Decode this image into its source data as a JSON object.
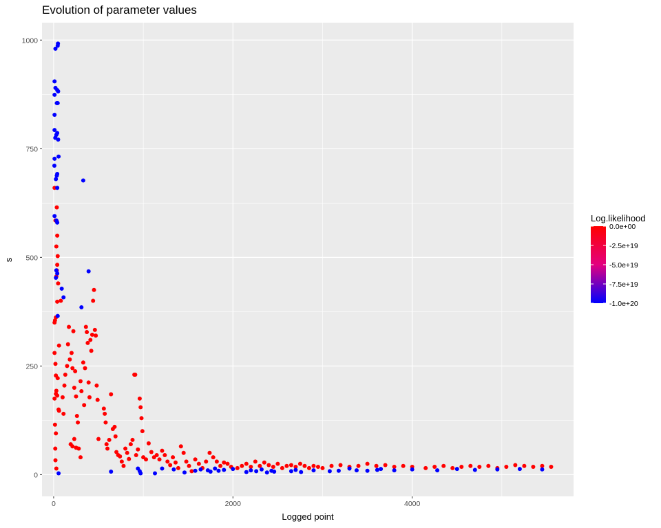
{
  "chart_data": {
    "type": "scatter",
    "title": "Evolution of parameter values",
    "xlabel": "Logged point",
    "ylabel": "s",
    "xlim": [
      -130,
      5800
    ],
    "ylim": [
      -50,
      1040
    ],
    "x_ticks": [
      0,
      2000,
      4000
    ],
    "x_tick_labels": [
      "0",
      "2000",
      "4000"
    ],
    "y_ticks": [
      0,
      250,
      500,
      750,
      1000
    ],
    "y_tick_labels": [
      "0",
      "250",
      "500",
      "750",
      "1000"
    ],
    "grid": true,
    "background": "#ebebeb",
    "legend": {
      "title": "Log.likelihood",
      "position": "right",
      "type": "gradient",
      "low_color": "#0000ff",
      "high_color": "#ff0000",
      "range": [
        -1e+20,
        0
      ],
      "breaks": [
        0,
        -2.5e+19,
        -5e+19,
        -7.5e+19,
        -1e+20
      ],
      "labels": [
        "0.0e+00",
        "-2.5e+19",
        "-5.0e+19",
        "-7.5e+19",
        "-1.0e+20"
      ]
    },
    "blue_points": [
      [
        48,
        992
      ],
      [
        45,
        987
      ],
      [
        20,
        980
      ],
      [
        10,
        905
      ],
      [
        20,
        890
      ],
      [
        40,
        885
      ],
      [
        50,
        882
      ],
      [
        10,
        874
      ],
      [
        35,
        855
      ],
      [
        45,
        855
      ],
      [
        10,
        828
      ],
      [
        10,
        793
      ],
      [
        40,
        786
      ],
      [
        30,
        782
      ],
      [
        18,
        775
      ],
      [
        50,
        771
      ],
      [
        55,
        732
      ],
      [
        10,
        727
      ],
      [
        8,
        711
      ],
      [
        40,
        692
      ],
      [
        35,
        688
      ],
      [
        25,
        680
      ],
      [
        40,
        660
      ],
      [
        330,
        677
      ],
      [
        10,
        595
      ],
      [
        30,
        585
      ],
      [
        40,
        580
      ],
      [
        390,
        468
      ],
      [
        30,
        470
      ],
      [
        40,
        463
      ],
      [
        25,
        453
      ],
      [
        90,
        428
      ],
      [
        110,
        408
      ],
      [
        310,
        385
      ],
      [
        45,
        365
      ],
      [
        55,
        3
      ],
      [
        640,
        7
      ],
      [
        940,
        14
      ],
      [
        960,
        8
      ],
      [
        970,
        3
      ],
      [
        1130,
        3
      ],
      [
        1210,
        14
      ],
      [
        1340,
        12
      ],
      [
        1460,
        5
      ],
      [
        1580,
        9
      ],
      [
        1640,
        12
      ],
      [
        1720,
        10
      ],
      [
        1750,
        7
      ],
      [
        1800,
        14
      ],
      [
        1840,
        9
      ],
      [
        1900,
        11
      ],
      [
        2000,
        13
      ],
      [
        2150,
        6
      ],
      [
        2200,
        10
      ],
      [
        2260,
        8
      ],
      [
        2320,
        12
      ],
      [
        2380,
        5
      ],
      [
        2430,
        9
      ],
      [
        2460,
        7
      ],
      [
        2650,
        8
      ],
      [
        2700,
        11
      ],
      [
        2760,
        6
      ],
      [
        2900,
        10
      ],
      [
        3080,
        8
      ],
      [
        3180,
        9
      ],
      [
        3300,
        14
      ],
      [
        3380,
        10
      ],
      [
        3500,
        9
      ],
      [
        3610,
        11
      ],
      [
        3650,
        13
      ],
      [
        3800,
        10
      ],
      [
        4000,
        12
      ],
      [
        4280,
        10
      ],
      [
        4500,
        13
      ],
      [
        4700,
        11
      ],
      [
        4950,
        12
      ],
      [
        5200,
        13
      ],
      [
        5450,
        12
      ]
    ],
    "red_points": [
      [
        10,
        660
      ],
      [
        35,
        615
      ],
      [
        20,
        585
      ],
      [
        35,
        583
      ],
      [
        40,
        550
      ],
      [
        30,
        525
      ],
      [
        45,
        503
      ],
      [
        40,
        483
      ],
      [
        35,
        470
      ],
      [
        30,
        456
      ],
      [
        50,
        440
      ],
      [
        80,
        400
      ],
      [
        40,
        398
      ],
      [
        10,
        350
      ],
      [
        15,
        355
      ],
      [
        25,
        362
      ],
      [
        60,
        297
      ],
      [
        10,
        280
      ],
      [
        20,
        255
      ],
      [
        25,
        228
      ],
      [
        10,
        175
      ],
      [
        30,
        193
      ],
      [
        40,
        182
      ],
      [
        45,
        222
      ],
      [
        25,
        186
      ],
      [
        55,
        150
      ],
      [
        60,
        147
      ],
      [
        15,
        115
      ],
      [
        25,
        95
      ],
      [
        18,
        60
      ],
      [
        20,
        33
      ],
      [
        30,
        14
      ],
      [
        100,
        178
      ],
      [
        110,
        140
      ],
      [
        120,
        205
      ],
      [
        130,
        230
      ],
      [
        150,
        250
      ],
      [
        160,
        300
      ],
      [
        170,
        340
      ],
      [
        180,
        265
      ],
      [
        200,
        280
      ],
      [
        210,
        245
      ],
      [
        220,
        330
      ],
      [
        230,
        200
      ],
      [
        240,
        238
      ],
      [
        250,
        180
      ],
      [
        260,
        135
      ],
      [
        270,
        120
      ],
      [
        280,
        60
      ],
      [
        300,
        215
      ],
      [
        310,
        192
      ],
      [
        330,
        258
      ],
      [
        350,
        245
      ],
      [
        360,
        340
      ],
      [
        370,
        328
      ],
      [
        380,
        303
      ],
      [
        390,
        212
      ],
      [
        400,
        178
      ],
      [
        410,
        310
      ],
      [
        420,
        285
      ],
      [
        430,
        322
      ],
      [
        440,
        400
      ],
      [
        450,
        425
      ],
      [
        460,
        333
      ],
      [
        470,
        320
      ],
      [
        480,
        205
      ],
      [
        490,
        172
      ],
      [
        500,
        82
      ],
      [
        190,
        70
      ],
      [
        210,
        65
      ],
      [
        230,
        82
      ],
      [
        250,
        62
      ],
      [
        300,
        40
      ],
      [
        340,
        160
      ],
      [
        560,
        152
      ],
      [
        570,
        140
      ],
      [
        580,
        120
      ],
      [
        590,
        70
      ],
      [
        600,
        60
      ],
      [
        620,
        80
      ],
      [
        640,
        185
      ],
      [
        660,
        105
      ],
      [
        680,
        110
      ],
      [
        690,
        88
      ],
      [
        700,
        52
      ],
      [
        720,
        45
      ],
      [
        740,
        42
      ],
      [
        760,
        30
      ],
      [
        780,
        20
      ],
      [
        800,
        60
      ],
      [
        820,
        50
      ],
      [
        840,
        36
      ],
      [
        860,
        70
      ],
      [
        880,
        80
      ],
      [
        900,
        230
      ],
      [
        910,
        230
      ],
      [
        920,
        45
      ],
      [
        940,
        58
      ],
      [
        960,
        175
      ],
      [
        970,
        155
      ],
      [
        980,
        130
      ],
      [
        990,
        100
      ],
      [
        1000,
        40
      ],
      [
        1030,
        35
      ],
      [
        1060,
        72
      ],
      [
        1090,
        52
      ],
      [
        1120,
        40
      ],
      [
        1150,
        45
      ],
      [
        1180,
        35
      ],
      [
        1210,
        55
      ],
      [
        1240,
        45
      ],
      [
        1270,
        30
      ],
      [
        1300,
        22
      ],
      [
        1330,
        40
      ],
      [
        1360,
        28
      ],
      [
        1390,
        15
      ],
      [
        1420,
        65
      ],
      [
        1450,
        50
      ],
      [
        1480,
        30
      ],
      [
        1510,
        20
      ],
      [
        1540,
        8
      ],
      [
        1580,
        35
      ],
      [
        1620,
        25
      ],
      [
        1660,
        15
      ],
      [
        1700,
        30
      ],
      [
        1740,
        50
      ],
      [
        1780,
        40
      ],
      [
        1820,
        30
      ],
      [
        1860,
        20
      ],
      [
        1900,
        28
      ],
      [
        1940,
        25
      ],
      [
        1980,
        18
      ],
      [
        2050,
        15
      ],
      [
        2100,
        20
      ],
      [
        2150,
        25
      ],
      [
        2200,
        18
      ],
      [
        2250,
        30
      ],
      [
        2300,
        20
      ],
      [
        2350,
        28
      ],
      [
        2400,
        22
      ],
      [
        2450,
        18
      ],
      [
        2500,
        25
      ],
      [
        2550,
        15
      ],
      [
        2600,
        20
      ],
      [
        2650,
        22
      ],
      [
        2700,
        18
      ],
      [
        2750,
        25
      ],
      [
        2800,
        20
      ],
      [
        2850,
        15
      ],
      [
        2900,
        20
      ],
      [
        2950,
        18
      ],
      [
        3000,
        15
      ],
      [
        3100,
        20
      ],
      [
        3200,
        22
      ],
      [
        3300,
        18
      ],
      [
        3400,
        20
      ],
      [
        3500,
        25
      ],
      [
        3600,
        20
      ],
      [
        3700,
        22
      ],
      [
        3800,
        18
      ],
      [
        3900,
        20
      ],
      [
        4000,
        18
      ],
      [
        4150,
        15
      ],
      [
        4250,
        18
      ],
      [
        4350,
        20
      ],
      [
        4450,
        15
      ],
      [
        4550,
        18
      ],
      [
        4650,
        20
      ],
      [
        4750,
        18
      ],
      [
        4850,
        20
      ],
      [
        4950,
        15
      ],
      [
        5050,
        18
      ],
      [
        5150,
        22
      ],
      [
        5250,
        20
      ],
      [
        5350,
        18
      ],
      [
        5450,
        20
      ],
      [
        5550,
        18
      ]
    ]
  }
}
